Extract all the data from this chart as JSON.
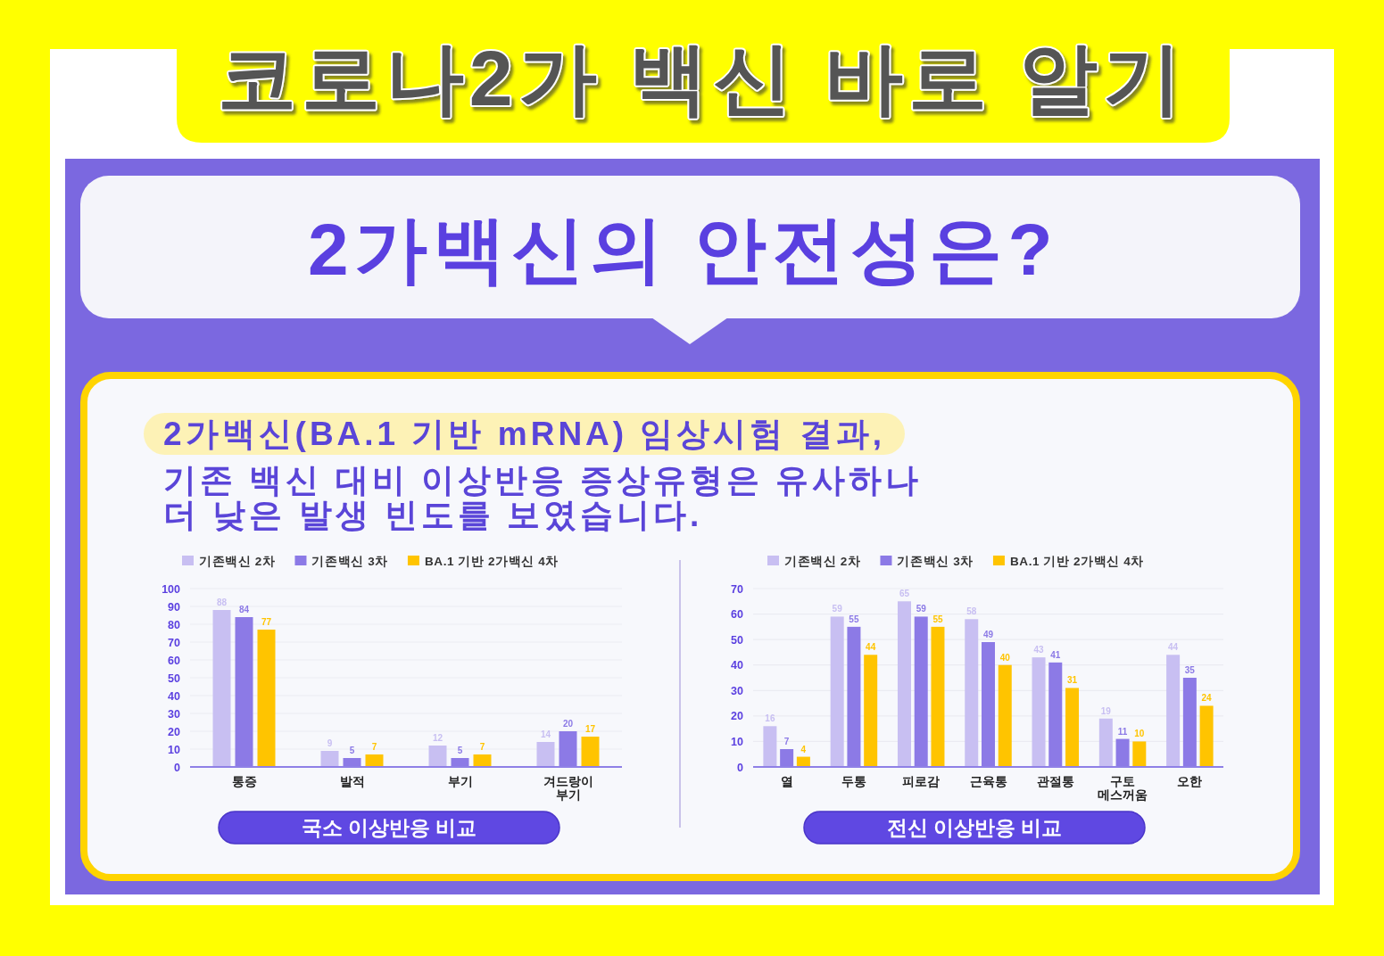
{
  "chart_data": [
    {
      "type": "bar",
      "title": "코로나2가 백신 바로 알기",
      "subtitle": "2가백신의 안전성은?",
      "annotations": [
        "2가백신(BA.1 기반 mRNA) 임상시험 결과,",
        "기존 백신 대비 이상반응 증상유형은 유사하나",
        "더 낮은 발생 빈도를 보였습니다."
      ],
      "xlabel": "국소 이상반응 비교",
      "categories": [
        "통증",
        "발적",
        "부기",
        "겨드랑이\n부기"
      ],
      "series": [
        {
          "name": "기존백신 2차",
          "color": "#c8bff2",
          "values": [
            88,
            9,
            12,
            14
          ]
        },
        {
          "name": "기존백신 3차",
          "color": "#8c7ae6",
          "values": [
            84,
            5,
            5,
            20
          ]
        },
        {
          "name": "BA.1 기반 2가백신 4차",
          "color": "#ffc400",
          "values": [
            77,
            7,
            7,
            17
          ]
        }
      ],
      "ylim": [
        0,
        100
      ],
      "yticks": [
        0,
        10,
        20,
        30,
        40,
        50,
        60,
        70,
        80,
        90,
        100
      ],
      "grid": "y",
      "legend": "top",
      "data_labels": true
    },
    {
      "type": "bar",
      "xlabel": "전신 이상반응 비교",
      "categories": [
        "열",
        "두통",
        "피로감",
        "근육통",
        "관절통",
        "구토\n메스꺼움",
        "오한"
      ],
      "series": [
        {
          "name": "기존백신 2차",
          "color": "#c8bff2",
          "values": [
            16,
            59,
            65,
            58,
            43,
            19,
            44
          ]
        },
        {
          "name": "기존백신 3차",
          "color": "#8c7ae6",
          "values": [
            7,
            55,
            59,
            49,
            41,
            11,
            35
          ]
        },
        {
          "name": "BA.1 기반 2가백신 4차",
          "color": "#ffc400",
          "values": [
            4,
            44,
            55,
            40,
            31,
            10,
            24
          ]
        }
      ],
      "ylim": [
        0,
        70
      ],
      "yticks": [
        0,
        10,
        20,
        30,
        40,
        50,
        60,
        70
      ],
      "grid": "y",
      "legend": "top",
      "data_labels": true
    }
  ]
}
